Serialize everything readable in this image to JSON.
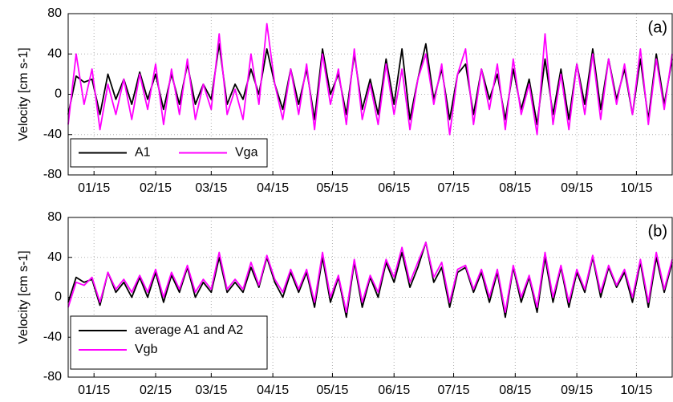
{
  "chart_data": [
    {
      "type": "line",
      "annotation": "(a)",
      "ylabel": "Velocity [cm s-1]",
      "x": [
        2,
        6,
        10,
        14,
        18,
        22,
        26,
        30,
        34,
        38,
        42,
        46,
        50,
        54,
        58,
        62,
        66,
        70,
        74,
        78,
        82,
        86,
        90,
        94,
        98,
        102,
        106,
        110,
        114,
        118,
        122,
        126,
        130,
        134,
        138,
        142,
        146,
        150,
        154,
        158,
        162,
        166,
        170,
        174,
        178,
        182,
        186,
        190,
        194,
        198,
        202,
        206,
        210,
        214,
        218,
        222,
        226,
        230,
        234,
        238,
        242,
        246,
        250,
        254,
        258,
        262,
        266,
        270,
        274,
        278,
        282,
        286,
        290,
        294,
        298,
        302,
        306
      ],
      "series": [
        {
          "name": "A1",
          "color": "#000000",
          "values": [
            -20,
            18,
            12,
            15,
            -20,
            20,
            -5,
            15,
            -10,
            22,
            -5,
            20,
            -15,
            20,
            -10,
            30,
            -10,
            10,
            -5,
            50,
            -10,
            10,
            -5,
            25,
            0,
            45,
            10,
            -15,
            25,
            -10,
            25,
            -25,
            45,
            0,
            20,
            -20,
            40,
            -15,
            15,
            -20,
            35,
            -10,
            45,
            -25,
            15,
            50,
            -5,
            25,
            -25,
            20,
            30,
            -20,
            25,
            -5,
            20,
            -25,
            25,
            -15,
            15,
            -30,
            35,
            -20,
            25,
            -25,
            30,
            -10,
            45,
            -15,
            35,
            -5,
            25,
            -20,
            35,
            -25,
            40,
            -10,
            35
          ]
        },
        {
          "name": "Vga",
          "color": "#ff00ff",
          "values": [
            -30,
            40,
            -10,
            25,
            -35,
            10,
            -20,
            15,
            -25,
            20,
            -15,
            30,
            -30,
            25,
            -20,
            35,
            -25,
            10,
            -15,
            60,
            -20,
            5,
            -25,
            40,
            -10,
            70,
            10,
            -25,
            25,
            -20,
            30,
            -35,
            40,
            -10,
            25,
            -30,
            45,
            -25,
            10,
            -30,
            30,
            -20,
            25,
            -35,
            15,
            40,
            -10,
            30,
            -40,
            20,
            45,
            -30,
            25,
            -15,
            30,
            -35,
            35,
            -20,
            10,
            -40,
            60,
            -30,
            20,
            -35,
            30,
            -20,
            40,
            -25,
            35,
            -10,
            30,
            -20,
            45,
            -30,
            35,
            -15,
            40
          ]
        }
      ],
      "xlim": [
        2,
        306
      ],
      "ylim": [
        -80,
        80
      ],
      "yticks": [
        -80,
        -40,
        0,
        40,
        80
      ],
      "xticks": [
        {
          "value": 15,
          "label": "01/15"
        },
        {
          "value": 46,
          "label": "02/15"
        },
        {
          "value": 74,
          "label": "03/15"
        },
        {
          "value": 105,
          "label": "04/15"
        },
        {
          "value": 135,
          "label": "05/15"
        },
        {
          "value": 166,
          "label": "06/15"
        },
        {
          "value": 196,
          "label": "07/15"
        },
        {
          "value": 227,
          "label": "08/15"
        },
        {
          "value": 258,
          "label": "09/15"
        },
        {
          "value": 288,
          "label": "10/15"
        }
      ],
      "grid": true,
      "legend_position": "lower left",
      "legend_layout": "row"
    },
    {
      "type": "line",
      "annotation": "(b)",
      "ylabel": "Velocity [cm s-1]",
      "x": [
        2,
        6,
        10,
        14,
        18,
        22,
        26,
        30,
        34,
        38,
        42,
        46,
        50,
        54,
        58,
        62,
        66,
        70,
        74,
        78,
        82,
        86,
        90,
        94,
        98,
        102,
        106,
        110,
        114,
        118,
        122,
        126,
        130,
        134,
        138,
        142,
        146,
        150,
        154,
        158,
        162,
        166,
        170,
        174,
        178,
        182,
        186,
        190,
        194,
        198,
        202,
        206,
        210,
        214,
        218,
        222,
        226,
        230,
        234,
        238,
        242,
        246,
        250,
        254,
        258,
        262,
        266,
        270,
        274,
        278,
        282,
        286,
        290,
        294,
        298,
        302,
        306
      ],
      "series": [
        {
          "name": "average A1 and A2",
          "color": "#000000",
          "values": [
            -5,
            20,
            15,
            18,
            -8,
            25,
            5,
            15,
            0,
            20,
            0,
            25,
            -5,
            22,
            5,
            30,
            0,
            15,
            5,
            40,
            5,
            15,
            5,
            30,
            10,
            40,
            15,
            0,
            25,
            5,
            25,
            -10,
            40,
            -5,
            20,
            -20,
            35,
            -10,
            20,
            0,
            35,
            15,
            45,
            10,
            30,
            55,
            15,
            30,
            -10,
            25,
            30,
            5,
            25,
            -5,
            25,
            -20,
            30,
            -5,
            20,
            -15,
            40,
            -5,
            30,
            -10,
            25,
            5,
            40,
            0,
            30,
            10,
            25,
            -5,
            35,
            -10,
            40,
            5,
            35
          ]
        },
        {
          "name": "Vgb",
          "color": "#ff00ff",
          "values": [
            -10,
            15,
            12,
            20,
            -5,
            25,
            8,
            18,
            5,
            22,
            5,
            28,
            0,
            25,
            8,
            32,
            5,
            18,
            8,
            45,
            8,
            18,
            8,
            35,
            12,
            42,
            18,
            5,
            28,
            8,
            28,
            -5,
            45,
            0,
            22,
            -15,
            38,
            -5,
            22,
            5,
            38,
            20,
            50,
            15,
            35,
            55,
            20,
            35,
            -5,
            28,
            32,
            8,
            28,
            0,
            28,
            -15,
            32,
            0,
            22,
            -10,
            45,
            0,
            32,
            -5,
            28,
            8,
            42,
            5,
            32,
            12,
            28,
            0,
            38,
            -5,
            45,
            8,
            38
          ]
        }
      ],
      "xlim": [
        2,
        306
      ],
      "ylim": [
        -80,
        80
      ],
      "yticks": [
        -80,
        -40,
        0,
        40,
        80
      ],
      "xticks": [
        {
          "value": 15,
          "label": "01/15"
        },
        {
          "value": 46,
          "label": "02/15"
        },
        {
          "value": 74,
          "label": "03/15"
        },
        {
          "value": 105,
          "label": "04/15"
        },
        {
          "value": 135,
          "label": "05/15"
        },
        {
          "value": 166,
          "label": "06/15"
        },
        {
          "value": 196,
          "label": "07/15"
        },
        {
          "value": 227,
          "label": "08/15"
        },
        {
          "value": 258,
          "label": "09/15"
        },
        {
          "value": 288,
          "label": "10/15"
        }
      ],
      "grid": true,
      "legend_position": "lower left",
      "legend_layout": "column"
    }
  ]
}
